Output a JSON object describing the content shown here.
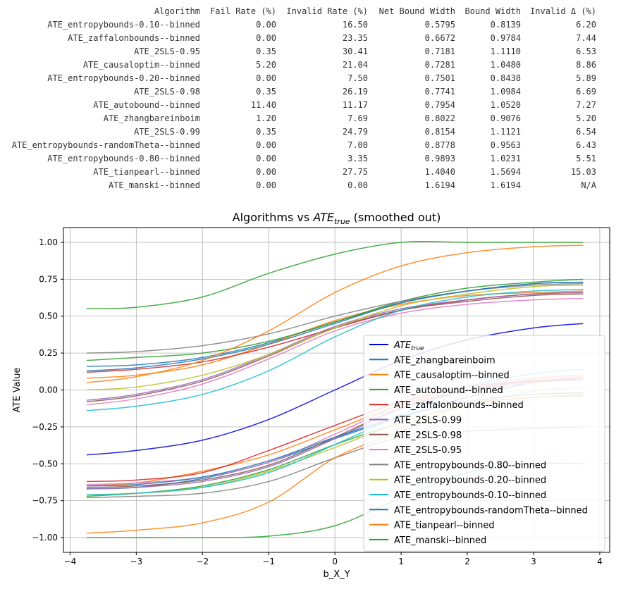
{
  "table": {
    "columns": [
      "Algorithm",
      "Fail Rate (%)",
      "Invalid Rate (%)",
      "Net Bound Width",
      "Bound Width",
      "Invalid Δ (%)"
    ],
    "rows": [
      [
        "ATE_entropybounds-0.10--binned",
        "0.00",
        "16.50",
        "0.5795",
        "0.8139",
        "6.20"
      ],
      [
        "ATE_zaffalonbounds--binned",
        "0.00",
        "23.35",
        "0.6672",
        "0.9784",
        "7.44"
      ],
      [
        "ATE_2SLS-0.95",
        "0.35",
        "30.41",
        "0.7181",
        "1.1110",
        "6.53"
      ],
      [
        "ATE_causaloptim--binned",
        "5.20",
        "21.04",
        "0.7281",
        "1.0480",
        "8.86"
      ],
      [
        "ATE_entropybounds-0.20--binned",
        "0.00",
        "7.50",
        "0.7501",
        "0.8438",
        "5.89"
      ],
      [
        "ATE_2SLS-0.98",
        "0.35",
        "26.19",
        "0.7741",
        "1.0984",
        "6.69"
      ],
      [
        "ATE_autobound--binned",
        "11.40",
        "11.17",
        "0.7954",
        "1.0520",
        "7.27"
      ],
      [
        "ATE_zhangbareinboim",
        "1.20",
        "7.69",
        "0.8022",
        "0.9076",
        "5.20"
      ],
      [
        "ATE_2SLS-0.99",
        "0.35",
        "24.79",
        "0.8154",
        "1.1121",
        "6.54"
      ],
      [
        "ATE_entropybounds-randomTheta--binned",
        "0.00",
        "7.00",
        "0.8778",
        "0.9563",
        "6.43"
      ],
      [
        "ATE_entropybounds-0.80--binned",
        "0.00",
        "3.35",
        "0.9893",
        "1.0231",
        "5.51"
      ],
      [
        "ATE_tianpearl--binned",
        "0.00",
        "27.75",
        "1.4040",
        "1.5694",
        "15.03"
      ],
      [
        "ATE_manski--binned",
        "0.00",
        "0.00",
        "1.6194",
        "1.6194",
        "N/A"
      ]
    ]
  },
  "chart_data": {
    "type": "line",
    "title_prefix": "Algorithms vs ",
    "title_math_base": "ATE",
    "title_math_sub": "true",
    "title_suffix": " (smoothed out)",
    "xlabel": "b_X_Y",
    "ylabel": "ATE Value",
    "xlim": [
      -4.1,
      4.15
    ],
    "ylim": [
      -1.1,
      1.1
    ],
    "xticks": [
      -4,
      -3,
      -2,
      -1,
      0,
      1,
      2,
      3,
      4
    ],
    "xtick_labels": [
      "−4",
      "−3",
      "−2",
      "−1",
      "0",
      "1",
      "2",
      "3",
      "4"
    ],
    "yticks": [
      -1.0,
      -0.75,
      -0.5,
      -0.25,
      0.0,
      0.25,
      0.5,
      0.75,
      1.0
    ],
    "ytick_labels": [
      "−1.00",
      "−0.75",
      "−0.50",
      "−0.25",
      "0.00",
      "0.25",
      "0.50",
      "0.75",
      "1.00"
    ],
    "grid": true,
    "legend_position": "lower-right",
    "x": [
      -3.75,
      -3,
      -2,
      -1,
      0,
      1,
      2,
      3,
      3.75
    ],
    "series": [
      {
        "legend_base": "ATE",
        "legend_sub": "true",
        "color": "#0000dd",
        "lower": [
          -0.44,
          -0.41,
          -0.34,
          -0.2,
          0.0,
          0.2,
          0.34,
          0.42,
          0.45
        ]
      },
      {
        "name": "ATE_zhangbareinboim",
        "color": "#1f77b4",
        "upper": [
          0.16,
          0.17,
          0.22,
          0.32,
          0.46,
          0.59,
          0.67,
          0.72,
          0.73
        ],
        "lower": [
          -0.67,
          -0.66,
          -0.6,
          -0.49,
          -0.33,
          -0.18,
          -0.05,
          0.05,
          0.08
        ]
      },
      {
        "name": "ATE_causaloptim--binned",
        "color": "#ff7f0e",
        "upper": [
          0.08,
          0.1,
          0.17,
          0.31,
          0.47,
          0.58,
          0.64,
          0.66,
          0.67
        ],
        "lower": [
          -0.65,
          -0.63,
          -0.55,
          -0.44,
          -0.27,
          -0.1,
          0.0,
          0.07,
          0.09
        ]
      },
      {
        "name": "ATE_autobound--binned",
        "color": "#2ca02c",
        "upper": [
          0.2,
          0.22,
          0.25,
          0.33,
          0.46,
          0.6,
          0.69,
          0.73,
          0.75
        ],
        "lower": [
          -0.72,
          -0.7,
          -0.65,
          -0.54,
          -0.37,
          -0.22,
          -0.1,
          -0.05,
          -0.04
        ]
      },
      {
        "name": "ATE_zaffalonbounds--binned",
        "color": "#d62728",
        "upper": [
          0.12,
          0.14,
          0.19,
          0.29,
          0.42,
          0.54,
          0.61,
          0.65,
          0.66
        ],
        "lower": [
          -0.62,
          -0.61,
          -0.56,
          -0.41,
          -0.24,
          -0.08,
          0.02,
          0.06,
          0.07
        ]
      },
      {
        "name": "ATE_2SLS-0.99",
        "color": "#9467bd",
        "upper": [
          -0.07,
          -0.03,
          0.07,
          0.24,
          0.43,
          0.55,
          0.61,
          0.65,
          0.66
        ],
        "lower": [
          -0.67,
          -0.66,
          -0.62,
          -0.52,
          -0.33,
          -0.13,
          -0.01,
          0.05,
          0.07
        ]
      },
      {
        "name": "ATE_2SLS-0.98",
        "color": "#8c564b",
        "upper": [
          -0.08,
          -0.04,
          0.06,
          0.23,
          0.42,
          0.54,
          0.6,
          0.64,
          0.65
        ],
        "lower": [
          -0.66,
          -0.65,
          -0.61,
          -0.51,
          -0.32,
          -0.12,
          0.0,
          0.06,
          0.08
        ]
      },
      {
        "name": "ATE_2SLS-0.95",
        "color": "#e377c2",
        "upper": [
          -0.1,
          -0.06,
          0.04,
          0.21,
          0.4,
          0.52,
          0.58,
          0.61,
          0.62
        ],
        "lower": [
          -0.64,
          -0.63,
          -0.59,
          -0.49,
          -0.3,
          -0.1,
          0.02,
          0.08,
          0.1
        ]
      },
      {
        "name": "ATE_entropybounds-0.80--binned",
        "color": "#7f7f7f",
        "upper": [
          0.25,
          0.26,
          0.3,
          0.38,
          0.5,
          0.6,
          0.67,
          0.71,
          0.72
        ],
        "lower": [
          -0.73,
          -0.72,
          -0.7,
          -0.62,
          -0.46,
          -0.32,
          -0.28,
          -0.26,
          -0.25
        ]
      },
      {
        "name": "ATE_entropybounds-0.20--binned",
        "color": "#bcbd22",
        "upper": [
          0.0,
          0.02,
          0.1,
          0.24,
          0.42,
          0.57,
          0.65,
          0.7,
          0.71
        ],
        "lower": [
          -0.71,
          -0.7,
          -0.66,
          -0.55,
          -0.39,
          -0.22,
          -0.1,
          -0.01,
          0.02
        ]
      },
      {
        "name": "ATE_entropybounds-0.10--binned",
        "color": "#17becf",
        "upper": [
          -0.14,
          -0.11,
          -0.03,
          0.13,
          0.36,
          0.54,
          0.63,
          0.67,
          0.68
        ],
        "lower": [
          -0.71,
          -0.7,
          -0.66,
          -0.56,
          -0.37,
          -0.17,
          0.02,
          0.11,
          0.14
        ]
      },
      {
        "name": "ATE_entropybounds-randomTheta--binned",
        "color": "#1f77b4",
        "upper": [
          0.13,
          0.15,
          0.21,
          0.31,
          0.45,
          0.59,
          0.67,
          0.72,
          0.73
        ],
        "lower": [
          -0.65,
          -0.64,
          -0.59,
          -0.48,
          -0.32,
          -0.18,
          -0.08,
          -0.03,
          -0.02
        ]
      },
      {
        "name": "ATE_tianpearl--binned",
        "color": "#ff7f0e",
        "upper": [
          0.05,
          0.09,
          0.2,
          0.4,
          0.66,
          0.84,
          0.93,
          0.97,
          0.98
        ],
        "lower": [
          -0.97,
          -0.95,
          -0.9,
          -0.76,
          -0.46,
          -0.28,
          -0.1,
          -0.05,
          -0.03
        ]
      },
      {
        "name": "ATE_manski--binned",
        "color": "#2ca02c",
        "upper": [
          0.55,
          0.56,
          0.63,
          0.79,
          0.92,
          1.0,
          1.0,
          1.0,
          1.0
        ],
        "lower": [
          -1.0,
          -1.0,
          -1.0,
          -0.99,
          -0.92,
          -0.73,
          -0.56,
          -0.5,
          -0.5
        ]
      }
    ]
  }
}
